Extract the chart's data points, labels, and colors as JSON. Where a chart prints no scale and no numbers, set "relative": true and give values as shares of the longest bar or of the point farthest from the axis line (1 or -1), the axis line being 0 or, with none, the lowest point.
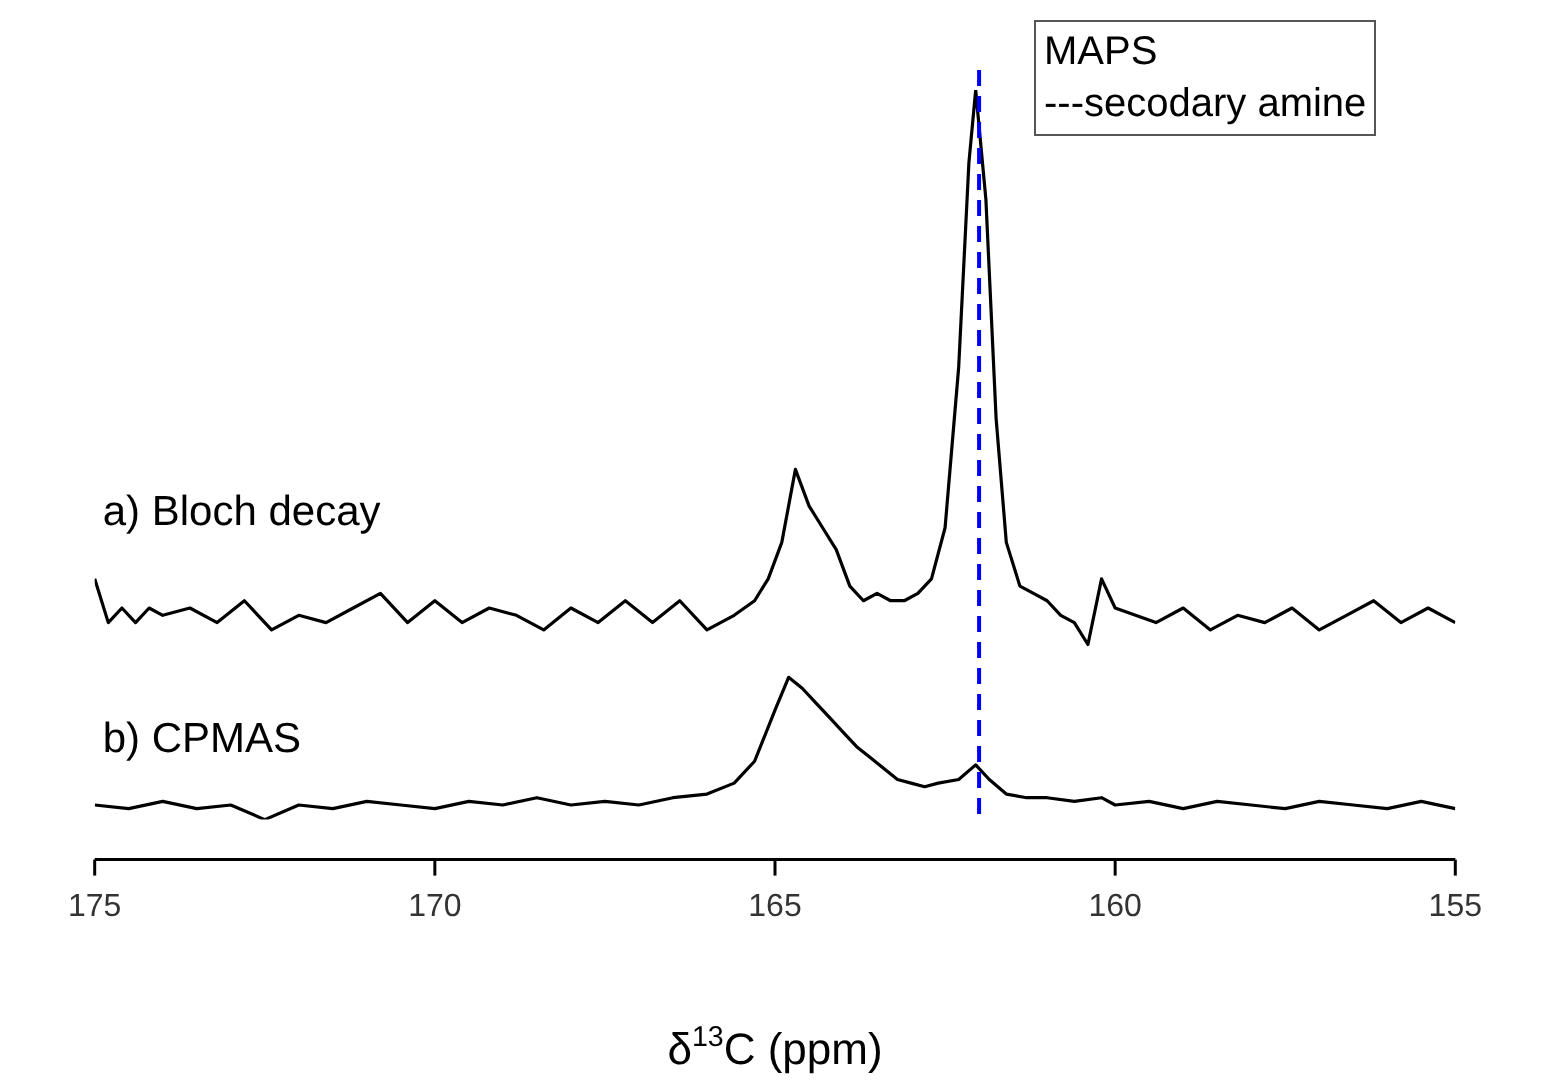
{
  "chart_data": {
    "type": "line",
    "relative": true,
    "xlabel": "δ$^{13}$C (ppm)",
    "xlim": [
      175,
      155
    ],
    "xticks": [
      175,
      170,
      165,
      160,
      155
    ],
    "grid": false,
    "legend": false,
    "annotations": [
      "MAPS",
      "---secodary amine"
    ],
    "ref_lines": [
      {
        "axis": "x",
        "value": 162,
        "color": "#0000ff",
        "line_style": "dashed"
      }
    ],
    "series": [
      {
        "name": "a) Bloch decay",
        "color": "#000000",
        "x": [
          175,
          174.8,
          174.6,
          174.4,
          174.2,
          174,
          173.6,
          173.2,
          172.8,
          172.4,
          172,
          171.6,
          171.2,
          170.8,
          170.4,
          170,
          169.6,
          169.2,
          168.8,
          168.4,
          168,
          167.6,
          167.2,
          166.8,
          166.4,
          166,
          165.6,
          165.3,
          165.1,
          164.9,
          164.7,
          164.5,
          164.3,
          164.1,
          163.9,
          163.7,
          163.5,
          163.3,
          163.1,
          162.9,
          162.7,
          162.5,
          162.3,
          162.15,
          162.05,
          161.9,
          161.75,
          161.6,
          161.4,
          161.2,
          161,
          160.8,
          160.6,
          160.4,
          160.2,
          160,
          159.7,
          159.4,
          159,
          158.6,
          158.2,
          157.8,
          157.4,
          157,
          156.6,
          156.2,
          155.8,
          155.4,
          155
        ],
        "values": [
          0.33,
          0.27,
          0.29,
          0.27,
          0.29,
          0.28,
          0.29,
          0.27,
          0.3,
          0.26,
          0.28,
          0.27,
          0.29,
          0.31,
          0.27,
          0.3,
          0.27,
          0.29,
          0.28,
          0.26,
          0.29,
          0.27,
          0.3,
          0.27,
          0.3,
          0.26,
          0.28,
          0.3,
          0.33,
          0.38,
          0.48,
          0.43,
          0.4,
          0.37,
          0.32,
          0.3,
          0.31,
          0.3,
          0.3,
          0.31,
          0.33,
          0.4,
          0.62,
          0.9,
          1,
          0.85,
          0.55,
          0.38,
          0.32,
          0.31,
          0.3,
          0.28,
          0.27,
          0.24,
          0.33,
          0.29,
          0.28,
          0.27,
          0.29,
          0.26,
          0.28,
          0.27,
          0.29,
          0.26,
          0.28,
          0.3,
          0.27,
          0.29,
          0.27
        ]
      },
      {
        "name": "b) CPMAS",
        "color": "#000000",
        "x": [
          175,
          174.5,
          174,
          173.5,
          173,
          172.5,
          172,
          171.5,
          171,
          170.5,
          170,
          169.5,
          169,
          168.5,
          168,
          167.5,
          167,
          166.5,
          166,
          165.6,
          165.3,
          165,
          164.8,
          164.6,
          164.4,
          164.2,
          164,
          163.8,
          163.6,
          163.4,
          163.2,
          163,
          162.8,
          162.6,
          162.3,
          162.05,
          161.85,
          161.6,
          161.3,
          161,
          160.6,
          160.2,
          160,
          159.5,
          159,
          158.5,
          158,
          157.5,
          157,
          156.5,
          156,
          155.5,
          155
        ],
        "values": [
          0.02,
          0.015,
          0.025,
          0.015,
          0.02,
          0,
          0.02,
          0.015,
          0.025,
          0.02,
          0.015,
          0.025,
          0.02,
          0.03,
          0.02,
          0.025,
          0.02,
          0.03,
          0.035,
          0.05,
          0.08,
          0.15,
          0.195,
          0.18,
          0.16,
          0.14,
          0.12,
          0.1,
          0.085,
          0.07,
          0.055,
          0.05,
          0.045,
          0.05,
          0.055,
          0.075,
          0.055,
          0.035,
          0.03,
          0.03,
          0.025,
          0.03,
          0.02,
          0.025,
          0.015,
          0.025,
          0.02,
          0.015,
          0.025,
          0.02,
          0.015,
          0.025,
          0.015
        ]
      }
    ]
  }
}
